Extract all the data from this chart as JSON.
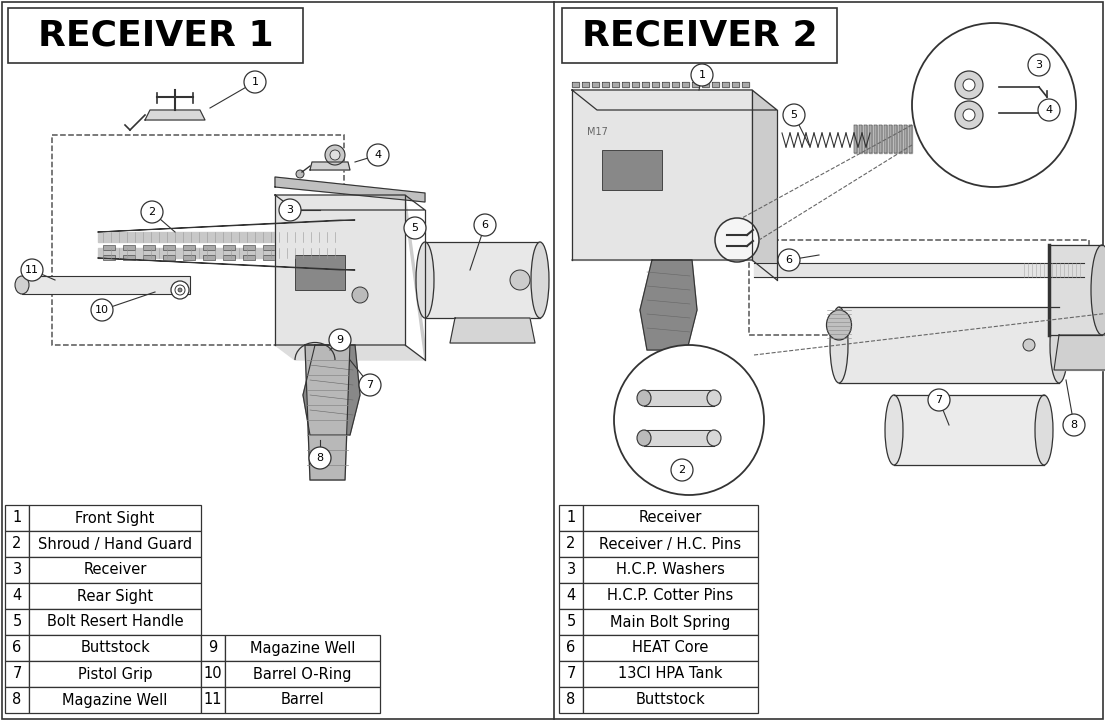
{
  "title1": "RECEIVER 1",
  "title2": "RECEIVER 2",
  "left_table_col1": [
    [
      "1",
      "Front Sight"
    ],
    [
      "2",
      "Shroud / Hand Guard"
    ],
    [
      "3",
      "Receiver"
    ],
    [
      "4",
      "Rear Sight"
    ],
    [
      "5",
      "Bolt Resert Handle"
    ],
    [
      "6",
      "Buttstock"
    ],
    [
      "7",
      "Pistol Grip"
    ],
    [
      "8",
      "Magazine Well"
    ]
  ],
  "left_table_col2": [
    [
      "9",
      "Magazine Well"
    ],
    [
      "10",
      "Barrel O-Ring"
    ],
    [
      "11",
      "Barrel"
    ]
  ],
  "right_table": [
    [
      "1",
      "Receiver"
    ],
    [
      "2",
      "Receiver / H.C. Pins"
    ],
    [
      "3",
      "H.C.P. Washers"
    ],
    [
      "4",
      "H.C.P. Cotter Pins"
    ],
    [
      "5",
      "Main Bolt Spring"
    ],
    [
      "6",
      "HEAT Core"
    ],
    [
      "7",
      "13CI HPA Tank"
    ],
    [
      "8",
      "Buttstock"
    ]
  ],
  "bg_color": "#ffffff",
  "text_color": "#000000",
  "title_fontsize": 26,
  "table_fontsize": 10.5,
  "label_fontsize": 8
}
